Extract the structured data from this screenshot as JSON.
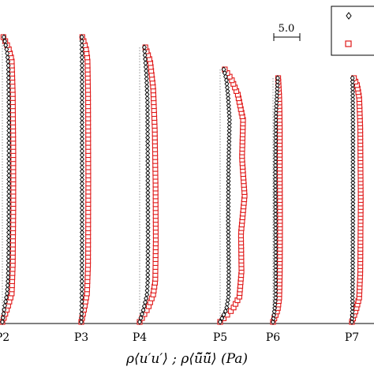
{
  "chart_data": {
    "type": "scatter",
    "xlabel": "ρ⟨u′u′⟩ ; ρ⟨ũ̃ũ̃⟩  (Pa)",
    "x_ticks": [
      "P2",
      "P3",
      "P4",
      "P5",
      "P6",
      "P7"
    ],
    "scale_bar_label": "5.0",
    "scale_bar_value": 5.0,
    "grid": false,
    "legend": {
      "position": "top-right",
      "entries": [
        {
          "marker": "diamond",
          "color": "#000000",
          "label": ""
        },
        {
          "marker": "square",
          "color": "#e01818",
          "label": ""
        }
      ]
    },
    "series": [
      {
        "marker": "diamond",
        "color": "#000000"
      },
      {
        "marker": "square",
        "color": "#e01818"
      }
    ],
    "profiles": [
      {
        "station": "P2",
        "black_profile": [
          [
            0.0,
            0.0
          ],
          [
            0.05,
            0.4
          ],
          [
            0.1,
            0.9
          ],
          [
            0.15,
            1.1
          ],
          [
            0.25,
            1.2
          ],
          [
            0.5,
            1.25
          ],
          [
            0.75,
            1.25
          ],
          [
            0.9,
            1.15
          ],
          [
            0.95,
            0.9
          ],
          [
            1.0,
            0.3
          ]
        ],
        "red_profile": [
          [
            0.0,
            0.0
          ],
          [
            0.05,
            1.0
          ],
          [
            0.1,
            1.8
          ],
          [
            0.2,
            2.0
          ],
          [
            0.4,
            2.1
          ],
          [
            0.6,
            2.1
          ],
          [
            0.8,
            2.0
          ],
          [
            0.92,
            1.8
          ],
          [
            0.96,
            1.2
          ],
          [
            1.0,
            0.2
          ]
        ]
      },
      {
        "station": "P3",
        "black_profile": [
          [
            0.0,
            0.0
          ],
          [
            0.05,
            0.1
          ],
          [
            0.3,
            0.15
          ],
          [
            0.6,
            0.15
          ],
          [
            0.9,
            0.15
          ],
          [
            1.0,
            0.1
          ]
        ],
        "red_profile": [
          [
            0.0,
            0.0
          ],
          [
            0.05,
            0.6
          ],
          [
            0.1,
            1.1
          ],
          [
            0.2,
            1.3
          ],
          [
            0.5,
            1.35
          ],
          [
            0.8,
            1.3
          ],
          [
            0.92,
            1.2
          ],
          [
            0.96,
            0.9
          ],
          [
            1.0,
            0.2
          ]
        ]
      },
      {
        "station": "P4",
        "black_profile": [
          [
            0.0,
            0.0
          ],
          [
            0.05,
            0.8
          ],
          [
            0.1,
            1.4
          ],
          [
            0.15,
            1.55
          ],
          [
            0.3,
            1.6
          ],
          [
            0.6,
            1.55
          ],
          [
            0.8,
            1.5
          ],
          [
            0.9,
            1.3
          ],
          [
            1.0,
            0.9
          ]
        ],
        "red_profile": [
          [
            0.0,
            0.0
          ],
          [
            0.05,
            1.6
          ],
          [
            0.1,
            2.6
          ],
          [
            0.15,
            3.0
          ],
          [
            0.3,
            3.1
          ],
          [
            0.5,
            3.05
          ],
          [
            0.7,
            2.9
          ],
          [
            0.85,
            2.6
          ],
          [
            0.95,
            2.0
          ],
          [
            1.0,
            1.1
          ]
        ]
      },
      {
        "station": "P5",
        "black_profile": [
          [
            0.0,
            0.0
          ],
          [
            0.05,
            1.2
          ],
          [
            0.1,
            1.6
          ],
          [
            0.2,
            1.65
          ],
          [
            0.4,
            1.55
          ],
          [
            0.6,
            1.6
          ],
          [
            0.8,
            1.8
          ],
          [
            0.9,
            1.5
          ],
          [
            0.96,
            1.2
          ],
          [
            1.0,
            0.7
          ]
        ],
        "red_profile": [
          [
            0.0,
            0.0
          ],
          [
            0.05,
            2.4
          ],
          [
            0.1,
            3.7
          ],
          [
            0.2,
            4.1
          ],
          [
            0.35,
            4.0
          ],
          [
            0.5,
            4.7
          ],
          [
            0.65,
            4.2
          ],
          [
            0.8,
            4.4
          ],
          [
            0.9,
            3.4
          ],
          [
            0.96,
            2.2
          ],
          [
            1.0,
            0.9
          ]
        ]
      },
      {
        "station": "P6",
        "black_profile": [
          [
            0.0,
            0.0
          ],
          [
            0.05,
            0.3
          ],
          [
            0.1,
            0.5
          ],
          [
            0.3,
            0.5
          ],
          [
            0.6,
            0.45
          ],
          [
            0.85,
            0.55
          ],
          [
            0.95,
            0.8
          ],
          [
            1.0,
            0.9
          ]
        ],
        "red_profile": [
          [
            0.0,
            0.0
          ],
          [
            0.05,
            0.9
          ],
          [
            0.1,
            1.2
          ],
          [
            0.2,
            1.3
          ],
          [
            0.4,
            1.35
          ],
          [
            0.6,
            1.3
          ],
          [
            0.8,
            1.3
          ],
          [
            0.92,
            1.2
          ],
          [
            1.0,
            1.0
          ]
        ]
      },
      {
        "station": "P7",
        "black_profile": [
          [
            0.0,
            0.0
          ],
          [
            0.05,
            0.1
          ],
          [
            0.2,
            0.15
          ],
          [
            0.5,
            0.2
          ],
          [
            0.8,
            0.2
          ],
          [
            0.95,
            0.15
          ],
          [
            1.0,
            0.1
          ]
        ],
        "red_profile": [
          [
            0.0,
            0.0
          ],
          [
            0.05,
            0.8
          ],
          [
            0.1,
            1.4
          ],
          [
            0.2,
            1.6
          ],
          [
            0.5,
            1.7
          ],
          [
            0.8,
            1.6
          ],
          [
            0.92,
            1.4
          ],
          [
            0.97,
            1.0
          ],
          [
            1.0,
            0.4
          ]
        ]
      }
    ]
  }
}
